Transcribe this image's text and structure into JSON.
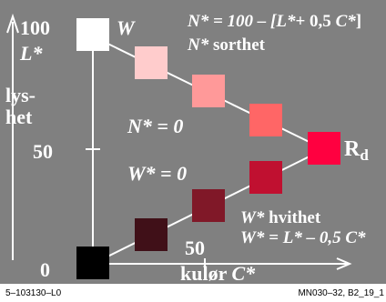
{
  "axes": {
    "y_top_value": "100",
    "y_mid_value": "50",
    "y_zero_value": "0",
    "y_symbol": "L*",
    "y_name_line1": "lys-",
    "y_name_line2": "het",
    "x_mid_value": "50",
    "x_name": "kulør",
    "x_symbol": "C*"
  },
  "labels": {
    "white_symbol": "W",
    "formula_n_left": "N* = 100 – [",
    "formula_n_l": "L*",
    "formula_n_mid": "+ 0,5",
    "formula_n_c": "C*",
    "formula_n_end": "]",
    "n_title_sym": "N*",
    "n_title_word": "sorthet",
    "n_zero": "N* = 0",
    "w_zero": "W* = 0",
    "rd_main": "R",
    "rd_sub": "d",
    "w_title_sym": "W*",
    "w_title_word": "hvithet",
    "formula_w": "W* = L* – 0,5 C*"
  },
  "swatches": [
    {
      "name": "white",
      "color": "#ffffff"
    },
    {
      "name": "tint-1",
      "color": "#ffcccc"
    },
    {
      "name": "tint-2",
      "color": "#ff9999"
    },
    {
      "name": "tint-3",
      "color": "#ff6666"
    },
    {
      "name": "red-rd",
      "color": "#ff0040"
    },
    {
      "name": "shade-3",
      "color": "#c01030"
    },
    {
      "name": "shade-2",
      "color": "#801828"
    },
    {
      "name": "shade-1",
      "color": "#401018"
    },
    {
      "name": "black",
      "color": "#000000"
    }
  ],
  "footer": {
    "left": "5–103130–L0",
    "right": "MN030–32, B2_19_1"
  }
}
